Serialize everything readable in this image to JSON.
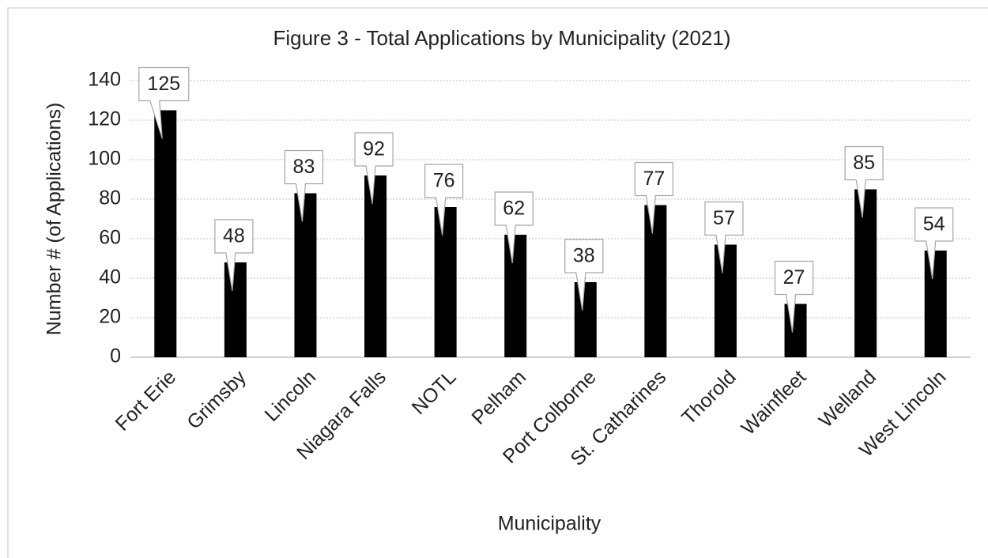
{
  "chart_data": {
    "type": "bar",
    "title": "Figure 3 - Total Applications by Municipality (2021)",
    "x_label": "Municipality",
    "y_label": "Number # (of Applications)",
    "categories": [
      "Fort Erie",
      "Grimsby",
      "Lincoln",
      "Niagara Falls",
      "NOTL",
      "Pelham",
      "Port Colborne",
      "St. Catharines",
      "Thorold",
      "Wainfleet",
      "Welland",
      "West Lincoln"
    ],
    "values": [
      125,
      48,
      83,
      92,
      76,
      62,
      38,
      77,
      57,
      27,
      85,
      54
    ],
    "color": "#000000",
    "ylim": [
      0,
      140
    ],
    "yticks": [
      0,
      20,
      40,
      60,
      80,
      100,
      120,
      140
    ],
    "grid": true
  }
}
